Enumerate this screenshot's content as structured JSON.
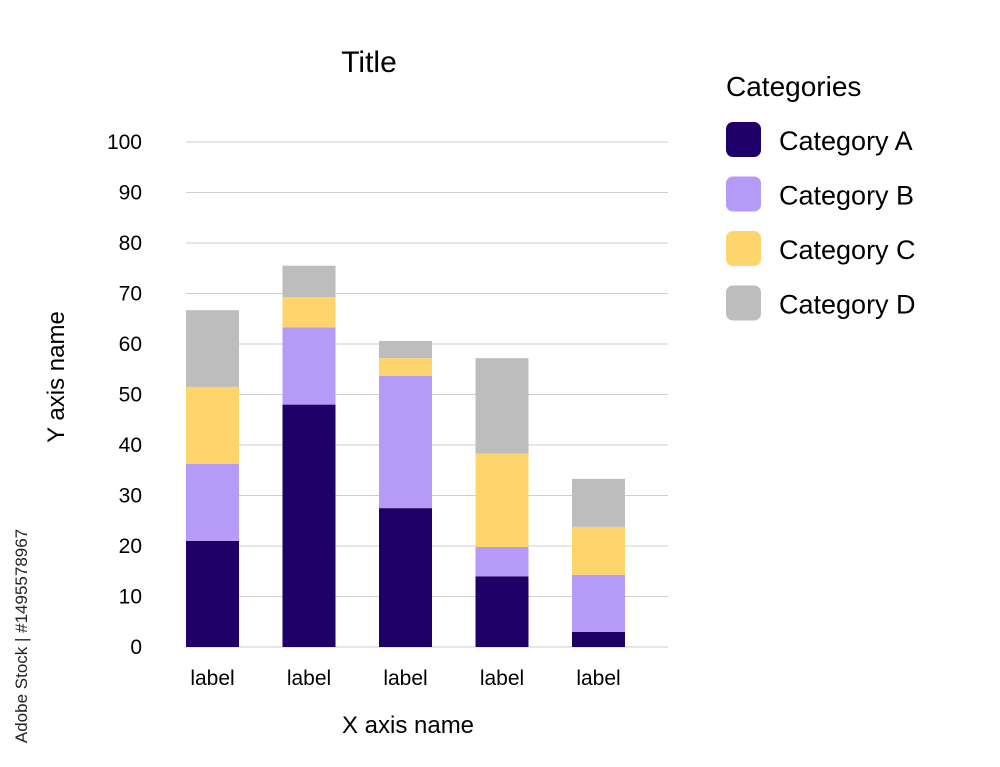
{
  "chart_data": {
    "type": "bar",
    "stacked": true,
    "title": "Title",
    "xlabel": "X axis name",
    "ylabel": "Y axis name",
    "categories": [
      "label",
      "label",
      "label",
      "label",
      "label"
    ],
    "ylim": [
      0,
      100
    ],
    "yticks": [
      0,
      10,
      20,
      30,
      40,
      50,
      60,
      70,
      80,
      90,
      100
    ],
    "grid": true,
    "legend": {
      "title": "Categories",
      "position": "right"
    },
    "series": [
      {
        "name": "Category A",
        "color": "#1e0068",
        "values": [
          21,
          48,
          27.5,
          14,
          3
        ]
      },
      {
        "name": "Category B",
        "color": "#b69af8",
        "values": [
          15.3,
          15.3,
          26.2,
          5.8,
          11.3
        ]
      },
      {
        "name": "Category C",
        "color": "#fdd56a",
        "values": [
          15.2,
          6,
          3.5,
          18.5,
          9.5
        ]
      },
      {
        "name": "Category D",
        "color": "#bdbdbd",
        "values": [
          15.2,
          6.2,
          3.4,
          18.9,
          9.5
        ]
      }
    ]
  },
  "watermark": {
    "text": "Adobe Stock | #1495578967"
  }
}
